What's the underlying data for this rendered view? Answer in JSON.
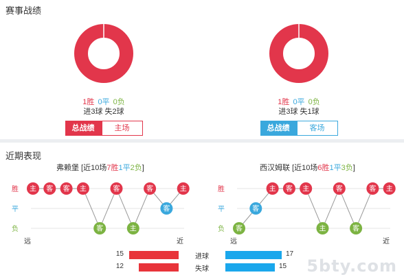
{
  "section_record": {
    "title": "赛事战绩"
  },
  "home": {
    "wins": "1胜",
    "draws": "0平",
    "losses": "0负",
    "goals": "进3球 失2球",
    "tab_total": "总战绩",
    "tab_venue": "主场",
    "donut_fraction": 1.0
  },
  "away": {
    "wins": "1胜",
    "draws": "0平",
    "losses": "0负",
    "goals": "进3球 失1球",
    "tab_total": "总战绩",
    "tab_venue": "客场",
    "donut_fraction": 1.0
  },
  "section_recent": {
    "title": "近期表现"
  },
  "home_recent": {
    "team": "弗赖堡",
    "prefix": " [近10场",
    "wins": "7胜",
    "draws": "1平",
    "losses": "2负",
    "suffix": "]",
    "row_labels": {
      "win": "胜",
      "draw": "平",
      "loss": "负"
    },
    "far_label": "远",
    "near_label": "近",
    "results": [
      {
        "venue": "主",
        "result": "W"
      },
      {
        "venue": "客",
        "result": "W"
      },
      {
        "venue": "客",
        "result": "W"
      },
      {
        "venue": "主",
        "result": "W"
      },
      {
        "venue": "客",
        "result": "L"
      },
      {
        "venue": "客",
        "result": "W"
      },
      {
        "venue": "主",
        "result": "L"
      },
      {
        "venue": "客",
        "result": "W"
      },
      {
        "venue": "客",
        "result": "D"
      },
      {
        "venue": "主",
        "result": "W"
      }
    ]
  },
  "away_recent": {
    "team": "西汉姆联",
    "prefix": " [近10场",
    "wins": "6胜",
    "draws": "1平",
    "losses": "3负",
    "suffix": "]",
    "row_labels": {
      "win": "胜",
      "draw": "平",
      "loss": "负"
    },
    "far_label": "远",
    "near_label": "近",
    "results": [
      {
        "venue": "客",
        "result": "L"
      },
      {
        "venue": "客",
        "result": "D"
      },
      {
        "venue": "主",
        "result": "W"
      },
      {
        "venue": "客",
        "result": "W"
      },
      {
        "venue": "主",
        "result": "W"
      },
      {
        "venue": "主",
        "result": "L"
      },
      {
        "venue": "客",
        "result": "W"
      },
      {
        "venue": "客",
        "result": "L"
      },
      {
        "venue": "客",
        "result": "W"
      },
      {
        "venue": "主",
        "result": "W"
      }
    ]
  },
  "goal_stats": {
    "scored_label": "进球",
    "conceded_label": "失球",
    "home_scored": 15,
    "home_conceded": 12,
    "away_scored": 17,
    "away_conceded": 15
  },
  "colors": {
    "win": "#e2364b",
    "draw": "#3aa8dd",
    "loss": "#7cb342",
    "home_bar": "#e8343a",
    "away_bar": "#1aa7ec"
  },
  "watermark": "5bty.com"
}
